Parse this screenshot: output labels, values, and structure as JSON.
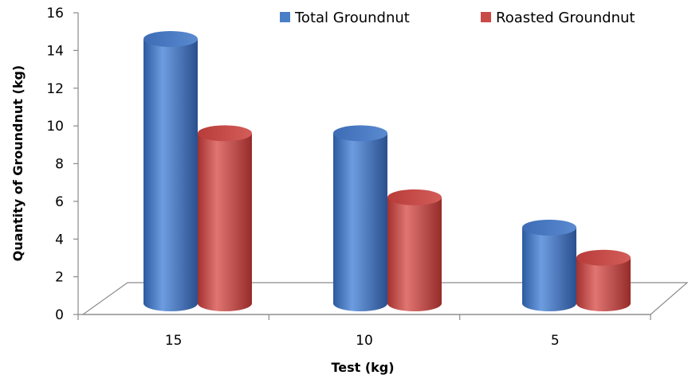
{
  "chart_data": {
    "type": "bar",
    "style": "3d-cylinder",
    "categories": [
      "15",
      "10",
      "5"
    ],
    "series": [
      {
        "name": "Total Groundnut",
        "values": [
          15.2,
          10.2,
          5.2
        ],
        "color": "#4a7fc8"
      },
      {
        "name": "Roasted Groundnut",
        "values": [
          10.2,
          6.8,
          3.6
        ],
        "color": "#c94b48"
      }
    ],
    "title": "",
    "xlabel": "Test (kg)",
    "ylabel": "Quantity of Groundnut (kg)",
    "ylim": [
      0,
      16
    ],
    "yticks": [
      "0",
      "2",
      "4",
      "6",
      "8",
      "10",
      "12",
      "14",
      "16"
    ],
    "grid": false,
    "legend_position": "top-right"
  }
}
